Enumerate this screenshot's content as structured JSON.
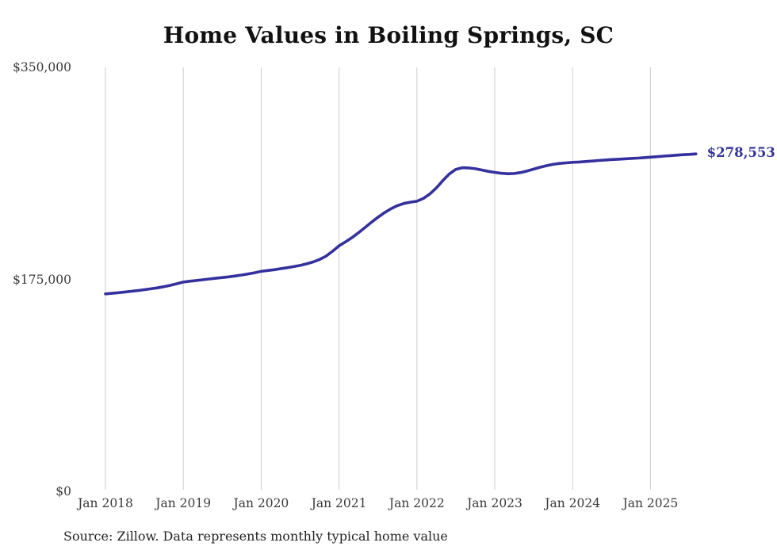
{
  "title": "Home Values in Boiling Springs, SC",
  "source_note": "Source: Zillow. Data represents monthly typical home value",
  "latest_value_label": "$278,553",
  "colors": {
    "line": "#34309d",
    "latest_label": "#333399",
    "gridline": "#cccccc",
    "axis_text": "#3a3a3a",
    "title_text": "#111111",
    "source_text": "#222222",
    "background": "#ffffff"
  },
  "chart_data": {
    "type": "line",
    "title": "Home Values in Boiling Springs, SC",
    "xlabel": "",
    "ylabel": "",
    "unit": "USD",
    "interval": "monthly",
    "x_start_month": "2018-01",
    "x_end_month": "2025-08",
    "x_tick_labels": [
      "Jan 2018",
      "Jan 2019",
      "Jan 2020",
      "Jan 2021",
      "Jan 2022",
      "Jan 2023",
      "Jan 2024",
      "Jan 2025"
    ],
    "y_ticks": [
      {
        "value": 0,
        "label": "$0"
      },
      {
        "value": 175000,
        "label": "$175,000"
      },
      {
        "value": 350000,
        "label": "$350,000"
      }
    ],
    "ylim": [
      0,
      350000
    ],
    "grid": "vertical-yearly",
    "legend": "none",
    "end_label": "$278,553",
    "source": "Source: Zillow. Data represents monthly typical home value",
    "series": [
      {
        "name": "Typical home value",
        "values": [
          163000,
          163500,
          164000,
          164600,
          165200,
          165800,
          166500,
          167200,
          168000,
          169000,
          170100,
          171400,
          172800,
          173500,
          174100,
          174700,
          175300,
          175900,
          176500,
          177100,
          177800,
          178600,
          179500,
          180500,
          181600,
          182300,
          183000,
          183800,
          184600,
          185500,
          186500,
          187800,
          189400,
          191400,
          194200,
          198200,
          202700,
          206000,
          209500,
          213500,
          217800,
          222200,
          226300,
          230000,
          233300,
          235900,
          237700,
          238700,
          239500,
          241800,
          245500,
          250500,
          256500,
          262000,
          265800,
          267200,
          267000,
          266300,
          265300,
          264200,
          263300,
          262600,
          262200,
          262400,
          263200,
          264500,
          266000,
          267600,
          268900,
          269900,
          270700,
          271200,
          271600,
          271900,
          272300,
          272700,
          273100,
          273500,
          273900,
          274200,
          274500,
          274800,
          275100,
          275500,
          275900,
          276300,
          276700,
          277100,
          277500,
          277900,
          278200,
          278553
        ]
      }
    ]
  }
}
